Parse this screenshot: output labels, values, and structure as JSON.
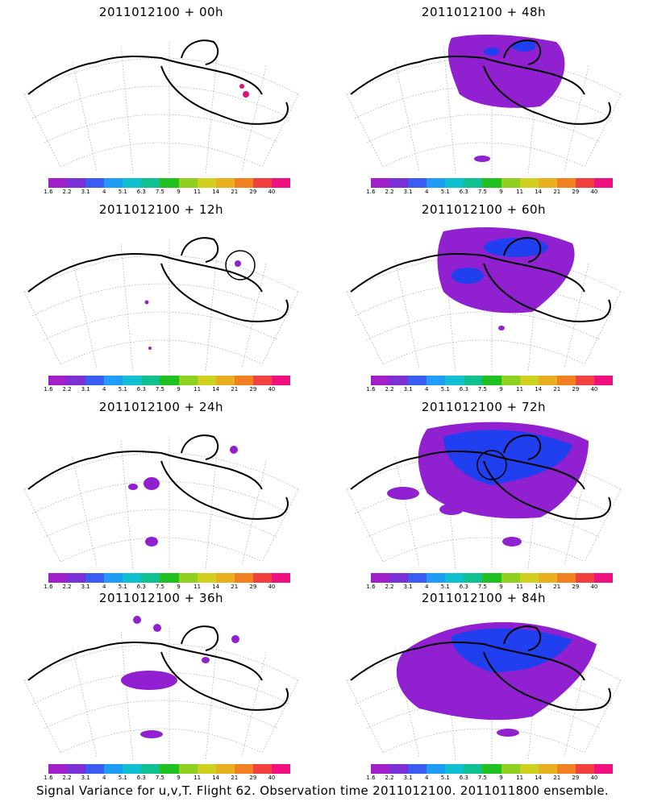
{
  "panels": [
    {
      "title": "2011012100 + 00h"
    },
    {
      "title": "2011012100 + 48h"
    },
    {
      "title": "2011012100 + 12h"
    },
    {
      "title": "2011012100 + 60h"
    },
    {
      "title": "2011012100 + 24h"
    },
    {
      "title": "2011012100 + 72h"
    },
    {
      "title": "2011012100 + 36h"
    },
    {
      "title": "2011012100 + 84h"
    }
  ],
  "colorbar": {
    "labels": [
      "1.6",
      "2.2",
      "3.1",
      "4",
      "5.1",
      "6.3",
      "7.5",
      "9",
      "11",
      "14",
      "21",
      "29",
      "40"
    ],
    "colors": [
      "#a020c8",
      "#7b2fd6",
      "#3a5cf0",
      "#1f9cf5",
      "#10c0d0",
      "#10c090",
      "#20c020",
      "#90d020",
      "#d0d020",
      "#e8b020",
      "#f08020",
      "#f04040",
      "#f01080"
    ]
  },
  "caption": "Signal Variance for u,v,T. Flight 62. Observation time 2011012100. 2011011800 ensemble."
}
